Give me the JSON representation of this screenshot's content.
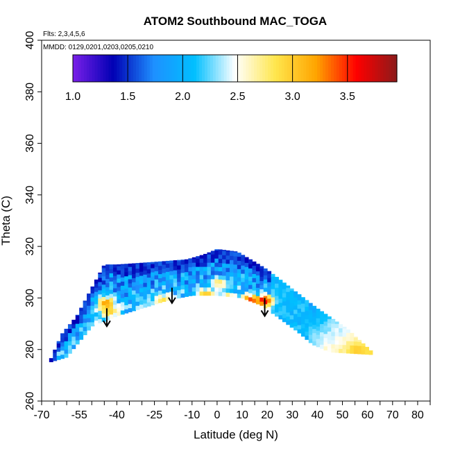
{
  "chart_data": {
    "type": "heatmap",
    "title": "ATOM2 Southbound MAC_TOGA",
    "subtitle_flights": "Flts: 2,3,4,5,6",
    "subtitle_dates": "MMDD: 0129,0201,0203,0205,0210",
    "xlabel": "Latitude (deg N)",
    "ylabel": "Theta (C)",
    "x_ticks": [
      "-70",
      "-55",
      "-40",
      "-25",
      "-10",
      "0",
      "10",
      "20",
      "30",
      "40",
      "50",
      "60",
      "70",
      "80"
    ],
    "y_ticks": [
      "260",
      "280",
      "300",
      "320",
      "340",
      "360",
      "380",
      "400"
    ],
    "xlim": [
      -70,
      85
    ],
    "ylim": [
      260,
      400
    ],
    "colorbar": {
      "range": [
        1.0,
        3.95
      ],
      "tick_values": [
        1.0,
        1.5,
        2.0,
        2.5,
        3.0,
        3.5
      ],
      "tick_labels": [
        "1.0",
        "1.5",
        "2.0",
        "2.5",
        "3.0",
        "3.5"
      ],
      "colors": [
        "#7a1fe8",
        "#0000b4",
        "#1e90ff",
        "#00bfff",
        "#ffffff",
        "#ffe64d",
        "#ffa500",
        "#ff0000",
        "#8b1a1a"
      ]
    },
    "coverage": {
      "top_theta": [
        [
          -67,
          275
        ],
        [
          -62,
          286
        ],
        [
          -56,
          293
        ],
        [
          -50,
          304
        ],
        [
          -45,
          313
        ],
        [
          -40,
          313
        ],
        [
          -25,
          314
        ],
        [
          -12,
          315
        ],
        [
          -5,
          317
        ],
        [
          0,
          319
        ],
        [
          8,
          318
        ],
        [
          15,
          314
        ],
        [
          20,
          311
        ],
        [
          28,
          305
        ],
        [
          40,
          296
        ],
        [
          52,
          288
        ],
        [
          62,
          279
        ]
      ],
      "bottom_theta": [
        [
          -67,
          275
        ],
        [
          -60,
          277
        ],
        [
          -55,
          283
        ],
        [
          -50,
          289
        ],
        [
          -40,
          293
        ],
        [
          -30,
          296
        ],
        [
          -20,
          299
        ],
        [
          -10,
          301
        ],
        [
          0,
          301
        ],
        [
          10,
          300
        ],
        [
          18,
          297
        ],
        [
          25,
          292
        ],
        [
          32,
          287
        ],
        [
          38,
          282
        ],
        [
          45,
          279
        ],
        [
          62,
          278
        ]
      ]
    },
    "hotspots": [
      {
        "lat": -45,
        "theta": 298,
        "value": 3.3
      },
      {
        "lat": -44,
        "theta": 295,
        "value": 3.0
      },
      {
        "lat": -22,
        "theta": 299,
        "value": 2.9
      },
      {
        "lat": -5,
        "theta": 301,
        "value": 3.1
      },
      {
        "lat": 3,
        "theta": 300,
        "value": 2.9
      },
      {
        "lat": 12,
        "theta": 299,
        "value": 3.5
      },
      {
        "lat": 18,
        "theta": 299,
        "value": 3.7
      },
      {
        "lat": 0,
        "theta": 306,
        "value": 2.8
      },
      {
        "lat": 55,
        "theta": 280,
        "value": 3.0
      }
    ],
    "arrows": [
      {
        "lat": -44,
        "theta_start": 296,
        "theta_end": 289
      },
      {
        "lat": -18,
        "theta_start": 304,
        "theta_end": 298
      },
      {
        "lat": 19,
        "theta_start": 300,
        "theta_end": 293
      }
    ]
  }
}
